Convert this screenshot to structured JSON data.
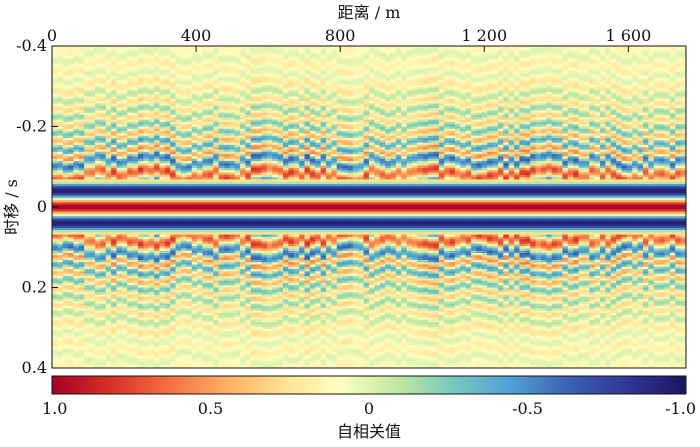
{
  "chart_data": {
    "type": "heatmap",
    "title": "",
    "xlabel": "距离 / m",
    "ylabel": "时移 / s",
    "x_ticks": [
      0,
      400,
      800,
      1200,
      1600
    ],
    "x_tick_labels": [
      "0",
      "400",
      "800",
      "1 200",
      "1 600"
    ],
    "xlim": [
      0,
      1760
    ],
    "y_ticks": [
      -0.4,
      -0.2,
      0,
      0.2,
      0.4
    ],
    "y_tick_labels": [
      "-0.4",
      "-0.2",
      "0",
      "0.2",
      "0.4"
    ],
    "ylim": [
      -0.4,
      0.4
    ],
    "colorbar": {
      "label": "自相关值",
      "ticks": [
        1.0,
        0.5,
        0,
        -0.5,
        -1.0
      ],
      "tick_labels": [
        "1.0",
        "0.5",
        "0",
        "-0.5",
        "-1.0"
      ],
      "range": [
        1.0,
        -1.0
      ],
      "colors": [
        "#a50026",
        "#d73027",
        "#f46d43",
        "#fdae61",
        "#fee090",
        "#ffffbf",
        "#bfe7a0",
        "#74c8c0",
        "#4f9fd6",
        "#3b5fb0",
        "#313695",
        "#1b1660"
      ]
    },
    "trace_profile": {
      "lag_s": [
        0.0,
        0.04,
        0.08,
        0.115,
        0.135,
        0.155,
        0.175,
        0.195,
        0.215,
        0.235,
        0.255,
        0.275,
        0.3,
        0.325,
        0.35,
        0.375,
        0.4
      ],
      "autocorrelation": [
        1.0,
        -0.95,
        0.75,
        -0.6,
        0.55,
        -0.45,
        0.45,
        -0.3,
        0.35,
        -0.2,
        0.3,
        -0.1,
        0.25,
        0.0,
        0.2,
        0.0,
        0.15
      ]
    },
    "symmetric_about_zero_lag": true
  }
}
